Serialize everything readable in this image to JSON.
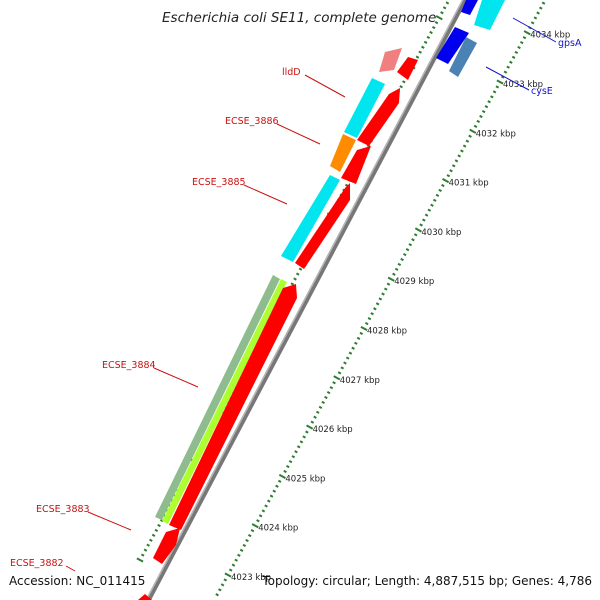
{
  "title": "Escherichia coli SE11, complete genome",
  "footer": {
    "accession": "Accession: NC_011415",
    "topology": "Topology: circular; Length: 4,887,515 bp; Genes: 4,786"
  },
  "colors": {
    "backbone": "#8a8a8a",
    "tick": "#2e7d32",
    "gene_label": "#cc1111",
    "gene_label_blue": "#1111cc",
    "cds": "#ff0000",
    "cds_light": "#f08080",
    "cyan": "#00e5ee",
    "orange": "#ff8c00",
    "blue": "#0000ee",
    "steel": "#4a82b4",
    "pale_green": "#8fbc8f",
    "lime": "#adff2f"
  },
  "axis": {
    "unit": "kbp",
    "ticks": [
      {
        "kbp": 4023,
        "label": "4023 kbp"
      },
      {
        "kbp": 4024,
        "label": "4024 kbp"
      },
      {
        "kbp": 4025,
        "label": "4025 kbp"
      },
      {
        "kbp": 4026,
        "label": "4026 kbp"
      },
      {
        "kbp": 4027,
        "label": "4027 kbp"
      },
      {
        "kbp": 4028,
        "label": "4028 kbp"
      },
      {
        "kbp": 4029,
        "label": "4029 kbp"
      },
      {
        "kbp": 4030,
        "label": "4030 kbp"
      },
      {
        "kbp": 4031,
        "label": "4031 kbp"
      },
      {
        "kbp": 4032,
        "label": "4032 kbp"
      },
      {
        "kbp": 4033,
        "label": "4033 kbp"
      },
      {
        "kbp": 4034,
        "label": "4034 kbp"
      }
    ]
  },
  "genes": [
    {
      "name": "ECSE_3882",
      "color": "red"
    },
    {
      "name": "ECSE_3883",
      "color": "red"
    },
    {
      "name": "ECSE_3884",
      "color": "red"
    },
    {
      "name": "ECSE_3885",
      "color": "red"
    },
    {
      "name": "ECSE_3886",
      "color": "red"
    },
    {
      "name": "lldD",
      "color": "red"
    },
    {
      "name": "cysE",
      "color": "blue"
    },
    {
      "name": "gpsA",
      "color": "blue"
    }
  ]
}
